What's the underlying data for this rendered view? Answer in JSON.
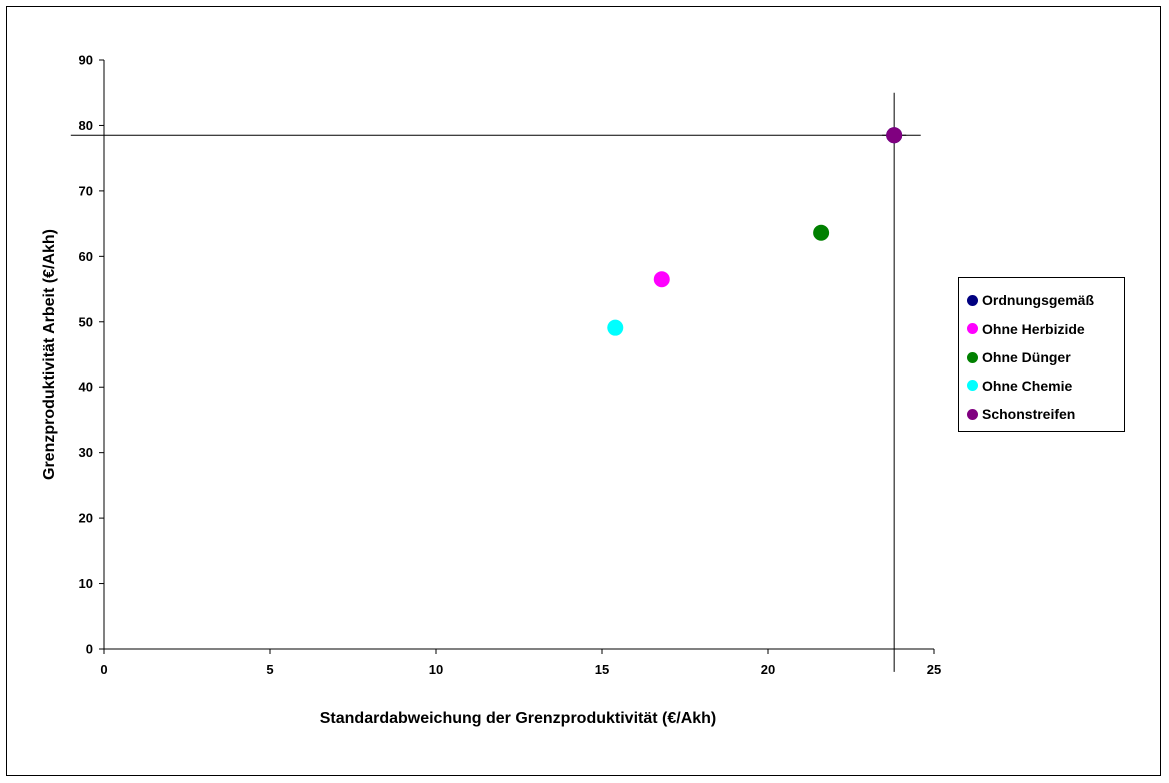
{
  "chart_data": {
    "type": "scatter",
    "xlabel": "Standardabweichung der Grenzproduktivität (€/Akh)",
    "ylabel": "Grenzproduktivität Arbeit (€/Akh)",
    "xlim": [
      0,
      25
    ],
    "ylim": [
      0,
      90
    ],
    "xticks": [
      0,
      5,
      10,
      15,
      20,
      25
    ],
    "yticks": [
      0,
      10,
      20,
      30,
      40,
      50,
      60,
      70,
      80,
      90
    ],
    "grid": false,
    "legend_position": "right",
    "series": [
      {
        "name": "Ordnungsgemäß",
        "color": "#000080",
        "x": 23.8,
        "y": 78.5
      },
      {
        "name": "Ohne Herbizide",
        "color": "#FF00FF",
        "x": 16.8,
        "y": 56.5
      },
      {
        "name": "Ohne Dünger",
        "color": "#008000",
        "x": 21.6,
        "y": 63.6
      },
      {
        "name": "Ohne Chemie",
        "color": "#00FFFF",
        "x": 15.4,
        "y": 49.1
      },
      {
        "name": "Schonstreifen",
        "color": "#800080",
        "x": 23.8,
        "y": 78.5
      }
    ],
    "reference_lines": {
      "x": 23.8,
      "y": 78.5,
      "y_line_x_range": [
        -1,
        24.6
      ],
      "x_line_y_range": [
        -3.5,
        85
      ]
    }
  }
}
